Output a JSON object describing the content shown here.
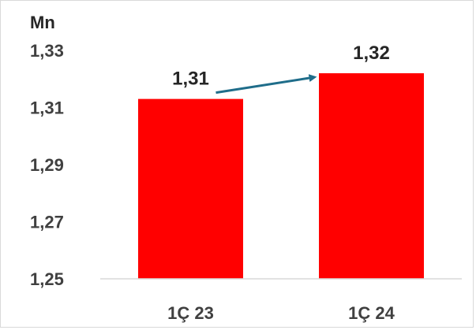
{
  "chart_data": {
    "type": "bar",
    "unit_label": "Mn",
    "categories": [
      "1Ç 23",
      "1Ç 24"
    ],
    "values": [
      1.313,
      1.322
    ],
    "data_labels": [
      "1,31",
      "1,32"
    ],
    "ylim": [
      1.25,
      1.33
    ],
    "y_ticks": [
      {
        "value": 1.25,
        "label": "1,25"
      },
      {
        "value": 1.27,
        "label": "1,27"
      },
      {
        "value": 1.29,
        "label": "1,29"
      },
      {
        "value": 1.31,
        "label": "1,31"
      },
      {
        "value": 1.33,
        "label": "1,33"
      }
    ],
    "grid": false,
    "bar_color": "#ff0000",
    "arrow_color": "#1f6d8a",
    "annotation": "arrow from first bar label to second bar label"
  }
}
